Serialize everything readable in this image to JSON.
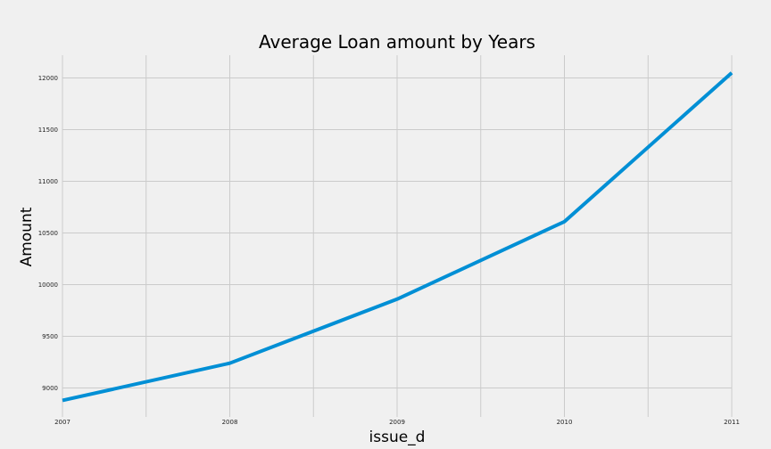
{
  "chart_data": {
    "type": "line",
    "title": "Average Loan amount by Years",
    "xlabel": "issue_d",
    "ylabel": "Amount",
    "x": [
      2007,
      2008,
      2009,
      2010,
      2011
    ],
    "x_tick_labels": [
      "2007",
      "2008",
      "2009",
      "2010",
      "2011"
    ],
    "y_tick_labels": [
      "9000",
      "9500",
      "10000",
      "10500",
      "11000",
      "11500",
      "12000"
    ],
    "y_ticks": [
      9000,
      9500,
      10000,
      10500,
      11000,
      11500,
      12000
    ],
    "series": [
      {
        "values": [
          8880,
          9240,
          9860,
          10610,
          12050
        ]
      }
    ],
    "xlim": [
      2007,
      2011
    ],
    "ylim": [
      8720,
      12220
    ],
    "x_minor_grid": [
      2007.5,
      2008.5,
      2009.5,
      2010.5
    ],
    "grid": true,
    "line_color": "#008fd5",
    "grid_color": "#cbcbcb",
    "background": "#f0f0f0"
  }
}
